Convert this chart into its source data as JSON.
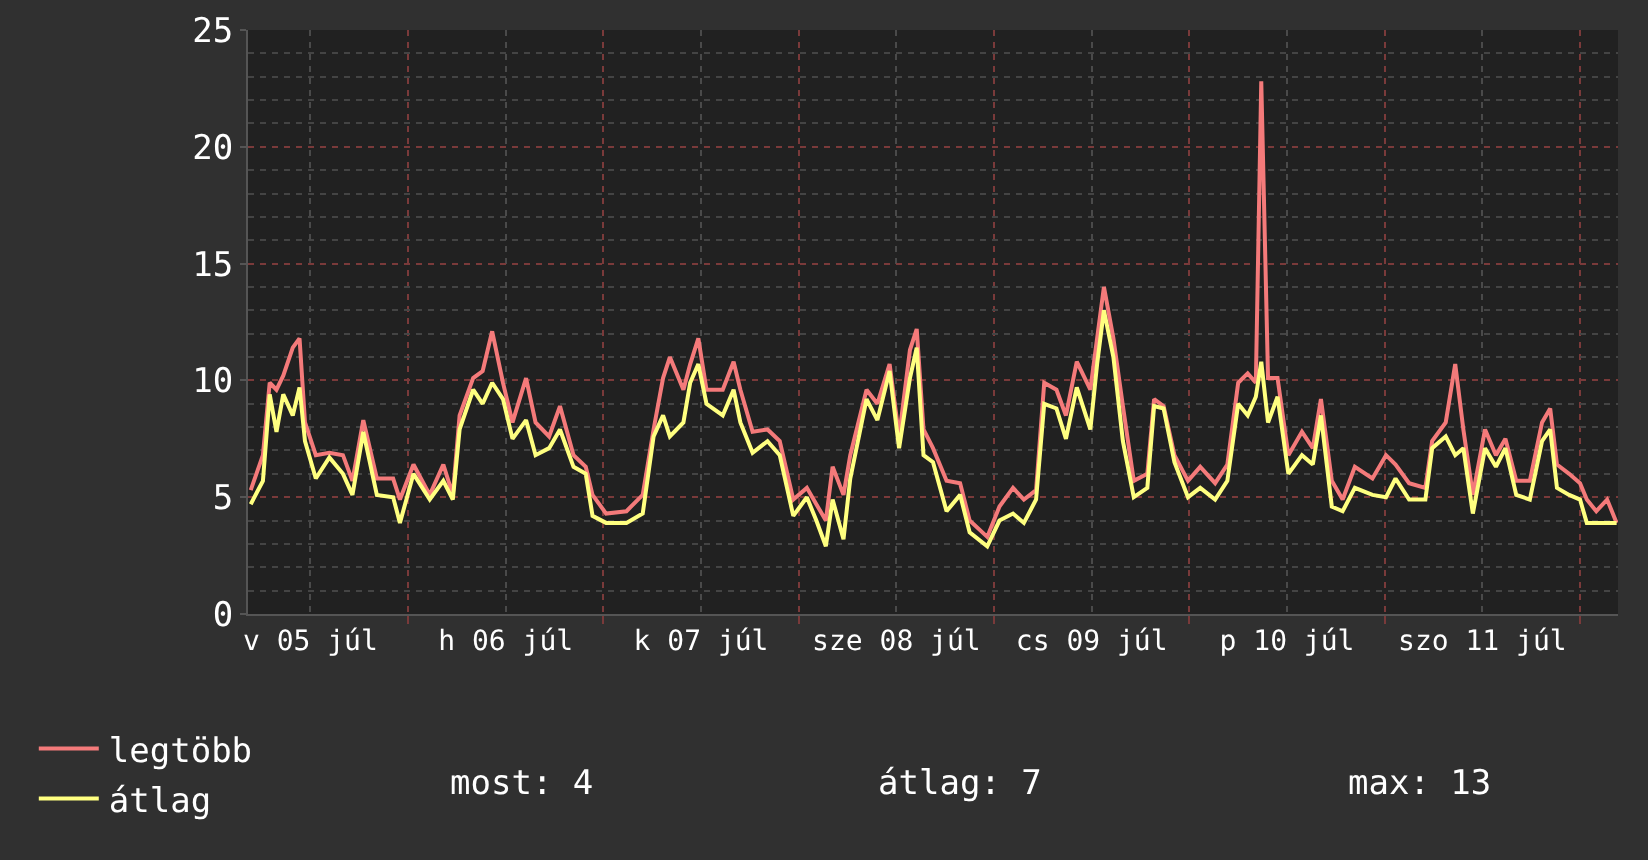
{
  "chart_data": {
    "type": "line",
    "x": [
      "--07-05T04:40",
      "--07-05T06:10",
      "--07-05T07:00",
      "--07-05T07:50",
      "--07-05T08:40",
      "--07-05T09:50",
      "--07-05T10:40",
      "--07-05T11:20",
      "--07-05T12:40",
      "--07-05T14:20",
      "--07-05T16:00",
      "--07-05T17:10",
      "--07-05T18:30",
      "--07-05T20:10",
      "--07-05T22:10",
      "--07-05T23:00",
      "--07-06T00:40",
      "--07-06T02:40",
      "--07-06T04:20",
      "--07-06T05:30",
      "--07-06T06:20",
      "--07-06T08:00",
      "--07-06T09:10",
      "--07-06T10:20",
      "--07-06T11:40",
      "--07-06T12:50",
      "--07-06T14:30",
      "--07-06T15:40",
      "--07-06T17:20",
      "--07-06T18:40",
      "--07-06T20:20",
      "--07-06T21:50",
      "--07-06T22:40",
      "--07-07T00:20",
      "--07-07T02:50",
      "--07-07T04:50",
      "--07-07T06:10",
      "--07-07T07:20",
      "--07-07T08:10",
      "--07-07T09:50",
      "--07-07T10:40",
      "--07-07T11:40",
      "--07-07T12:40",
      "--07-07T14:40",
      "--07-07T16:00",
      "--07-07T16:50",
      "--07-07T18:20",
      "--07-07T20:10",
      "--07-07T21:40",
      "--07-07T23:20",
      "--07-08T01:00",
      "--07-08T02:10",
      "--07-08T03:20",
      "--07-08T04:10",
      "--07-08T05:30",
      "--07-08T06:20",
      "--07-08T08:20",
      "--07-08T09:40",
      "--07-08T11:10",
      "--07-08T12:20",
      "--07-08T13:40",
      "--07-08T14:30",
      "--07-08T15:20",
      "--07-08T16:30",
      "--07-08T18:10",
      "--07-08T19:50",
      "--07-08T21:00",
      "--07-08T23:10",
      "--07-09T00:40",
      "--07-09T02:20",
      "--07-09T03:40",
      "--07-09T05:10",
      "--07-09T06:10",
      "--07-09T07:40",
      "--07-09T08:50",
      "--07-09T10:10",
      "--07-09T11:50",
      "--07-09T12:40",
      "--07-09T13:30",
      "--07-09T14:40",
      "--07-09T15:50",
      "--07-09T17:10",
      "--07-09T18:50",
      "--07-09T19:40",
      "--07-09T20:50",
      "--07-09T22:10",
      "--07-09T23:50",
      "--07-10T01:20",
      "--07-10T03:10",
      "--07-10T04:40",
      "--07-10T06:00",
      "--07-10T07:10",
      "--07-10T08:10",
      "--07-10T08:50",
      "--07-10T09:40",
      "--07-10T10:50",
      "--07-10T12:10",
      "--07-10T13:50",
      "--07-10T15:10",
      "--07-10T16:10",
      "--07-10T17:30",
      "--07-10T18:50",
      "--07-10T20:20",
      "--07-10T22:30",
      "--07-11T00:10",
      "--07-11T01:20",
      "--07-11T03:00",
      "--07-11T05:00",
      "--07-11T05:50",
      "--07-11T07:30",
      "--07-11T08:40",
      "--07-11T09:40",
      "--07-11T10:50",
      "--07-11T12:20",
      "--07-11T13:40",
      "--07-11T14:50",
      "--07-11T16:10",
      "--07-11T17:50",
      "--07-11T19:20",
      "--07-11T20:20",
      "--07-11T21:10",
      "--07-11T22:40",
      "--07-12T00:00",
      "--07-12T00:50",
      "--07-12T02:00",
      "--07-12T03:20",
      "--07-12T04:30"
    ],
    "series": [
      {
        "name": "legtöbb",
        "color": "#f47a7a",
        "values": [
          5.3,
          6.8,
          9.9,
          9.6,
          10.2,
          11.4,
          11.8,
          8.2,
          6.8,
          6.9,
          6.8,
          5.7,
          8.3,
          5.8,
          5.8,
          4.9,
          6.4,
          5.1,
          6.4,
          5.1,
          8.5,
          10.1,
          10.4,
          12.1,
          9.9,
          8.2,
          10.1,
          8.2,
          7.6,
          8.9,
          6.8,
          6.3,
          5.1,
          4.3,
          4.4,
          5.1,
          7.9,
          10.1,
          11,
          9.6,
          10.7,
          11.8,
          9.6,
          9.6,
          10.8,
          9.6,
          7.8,
          7.9,
          7.4,
          4.9,
          5.4,
          4.7,
          4,
          6.3,
          5.1,
          6.8,
          9.6,
          9,
          10.7,
          7.6,
          11.3,
          12.2,
          7.9,
          7.1,
          5.7,
          5.6,
          4,
          3.3,
          4.6,
          5.4,
          4.9,
          5.3,
          9.9,
          9.6,
          8.5,
          10.8,
          9.6,
          11.8,
          14,
          11.8,
          8.9,
          5.7,
          6,
          9.2,
          8.9,
          6.8,
          5.7,
          6.3,
          5.6,
          6.4,
          9.9,
          10.3,
          9.9,
          22.8,
          10.1,
          10.1,
          6.8,
          7.8,
          7.1,
          9.2,
          5.7,
          4.9,
          6.3,
          5.8,
          6.8,
          6.4,
          5.6,
          5.4,
          7.4,
          8.2,
          10.7,
          7.9,
          5.1,
          7.9,
          6.8,
          7.5,
          5.7,
          5.7,
          8.2,
          8.8,
          6.4,
          6,
          5.6,
          4.9,
          4.4,
          4.9,
          3.9
        ]
      },
      {
        "name": "átlag",
        "color": "#ffff80",
        "values": [
          4.7,
          5.7,
          9.4,
          7.8,
          9.4,
          8.5,
          9.7,
          7.4,
          5.8,
          6.7,
          6,
          5.1,
          7.8,
          5.1,
          5,
          3.9,
          6,
          4.9,
          5.7,
          4.9,
          7.9,
          9.6,
          9,
          9.9,
          9.2,
          7.5,
          8.3,
          6.8,
          7.1,
          7.9,
          6.3,
          6,
          4.2,
          3.9,
          3.9,
          4.3,
          7.6,
          8.5,
          7.6,
          8.2,
          9.9,
          10.7,
          9,
          8.5,
          9.6,
          8.2,
          6.9,
          7.4,
          6.8,
          4.2,
          5,
          4,
          2.9,
          4.9,
          3.2,
          5.8,
          9.2,
          8.3,
          10.4,
          7.1,
          10.1,
          11.4,
          6.8,
          6.5,
          4.4,
          5.1,
          3.5,
          2.9,
          4,
          4.3,
          3.9,
          4.9,
          9,
          8.8,
          7.5,
          9.7,
          7.9,
          10.7,
          13,
          11,
          7.4,
          5,
          5.4,
          8.9,
          8.8,
          6.5,
          5,
          5.4,
          4.9,
          5.7,
          9,
          8.5,
          9.3,
          10.8,
          8.2,
          9.3,
          6,
          6.8,
          6.4,
          8.5,
          4.6,
          4.4,
          5.4,
          5.1,
          5,
          5.8,
          4.9,
          4.9,
          7.1,
          7.6,
          6.8,
          7.1,
          4.3,
          7.1,
          6.3,
          7.1,
          5.1,
          4.9,
          7.4,
          7.9,
          5.4,
          5.1,
          4.9,
          3.9,
          3.9,
          3.9,
          3.9
        ]
      }
    ],
    "xlim": [
      "--07-05T04:20",
      "--07-12T04:40"
    ],
    "xticks": [
      {
        "value": "--07-05T12:00",
        "label": "v 05 júl"
      },
      {
        "value": "--07-06T12:00",
        "label": "h 06 júl"
      },
      {
        "value": "--07-07T12:00",
        "label": "k 07 júl"
      },
      {
        "value": "--07-08T12:00",
        "label": "sze 08 júl"
      },
      {
        "value": "--07-09T12:00",
        "label": "cs 09 júl"
      },
      {
        "value": "--07-10T12:00",
        "label": "p 10 júl"
      },
      {
        "value": "--07-11T12:00",
        "label": "szo 11 júl"
      },
      {
        "value": "--07-06T00:00",
        "label": null
      },
      {
        "value": "--07-07T00:00",
        "label": null
      },
      {
        "value": "--07-08T00:00",
        "label": null
      },
      {
        "value": "--07-09T00:00",
        "label": null
      },
      {
        "value": "--07-10T00:00",
        "label": null
      },
      {
        "value": "--07-11T00:00",
        "label": null
      },
      {
        "value": "--07-12T00:00",
        "label": null
      }
    ],
    "ylim": [
      0,
      25
    ],
    "yticks": [
      0,
      5,
      10,
      15,
      20,
      25
    ],
    "grid": true,
    "legend": "bottom left",
    "marker": "none",
    "line_style": "solid",
    "annotations": [
      "most: 4",
      "átlag: 7",
      "max: 13"
    ]
  }
}
